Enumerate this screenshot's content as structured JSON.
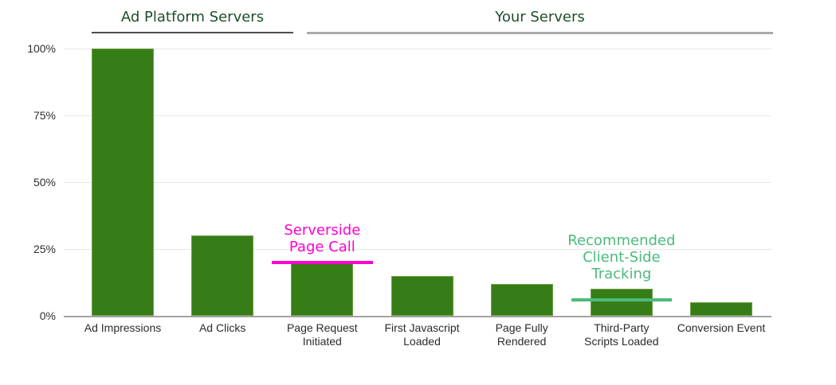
{
  "page": {
    "background": "#ffffff"
  },
  "sections": [
    {
      "label": "Ad Platform Servers",
      "columns": [
        "Ad Impressions",
        "Ad Clicks"
      ],
      "underline_color": "#4d4d4d",
      "text_color": "#1e4e2a"
    },
    {
      "label": "Your Servers",
      "columns": [
        "Page Request Initiated",
        "First Javascript Loaded",
        "Page Fully Rendered",
        "Third-Party Scripts Loaded",
        "Conversion Event"
      ],
      "underline_color": "#a9a9a9",
      "text_color": "#1e4e2a"
    }
  ],
  "chart_data": {
    "type": "bar",
    "title": "",
    "xlabel": "",
    "ylabel": "",
    "ylim": [
      0,
      100
    ],
    "grid": true,
    "legend": "none",
    "bar_color": "#377d17",
    "gridline_color": "#e7e7e7",
    "axis_line_color": "#a3a3a3",
    "tick_label_color": "#2b2b2b",
    "yticks": [
      "0%",
      "25%",
      "50%",
      "75%",
      "100%"
    ],
    "ytick_values": [
      0,
      25,
      50,
      75,
      100
    ],
    "categories": [
      {
        "label": "Ad Impressions",
        "lines": [
          "Ad Impressions"
        ],
        "value": 100
      },
      {
        "label": "Ad Clicks",
        "lines": [
          "Ad Clicks"
        ],
        "value": 30
      },
      {
        "label": "Page Request Initiated",
        "lines": [
          "Page Request",
          "Initiated"
        ],
        "value": 20
      },
      {
        "label": "First Javascript Loaded",
        "lines": [
          "First Javascript",
          "Loaded"
        ],
        "value": 15
      },
      {
        "label": "Page Fully Rendered",
        "lines": [
          "Page Fully",
          "Rendered"
        ],
        "value": 12
      },
      {
        "label": "Third-Party Scripts Loaded",
        "lines": [
          "Third-Party",
          "Scripts Loaded"
        ],
        "value": 10
      },
      {
        "label": "Conversion Event",
        "lines": [
          "Conversion Event"
        ],
        "value": 5
      }
    ],
    "annotations": [
      {
        "text": "Serverside Page Call",
        "lines": [
          "Serverside",
          "Page Call"
        ],
        "color": "#ff00d0",
        "line_value": 20,
        "anchor_category": "Page Request Initiated"
      },
      {
        "text": "Recommended Client-Side Tracking",
        "lines": [
          "Recommended",
          "Client-Side",
          "Tracking"
        ],
        "color": "#4cba7c",
        "line_value": 6,
        "anchor_category": "Third-Party Scripts Loaded"
      }
    ]
  }
}
